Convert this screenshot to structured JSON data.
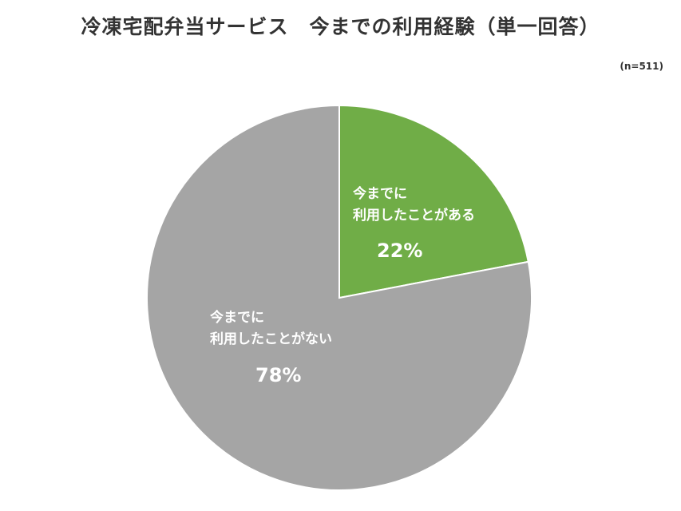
{
  "chart_data": {
    "type": "pie",
    "title": "冷凍宅配弁当サービス　今までの利用経験（単一回答）",
    "note": "(n=511)",
    "slices": [
      {
        "label_line1": "今までに",
        "label_line2": "利用したことがある",
        "value": 22,
        "value_label": "22%",
        "color": "#70ad47"
      },
      {
        "label_line1": "今までに",
        "label_line2": "利用したことがない",
        "value": 78,
        "value_label": "78%",
        "color": "#a5a5a5"
      }
    ]
  }
}
